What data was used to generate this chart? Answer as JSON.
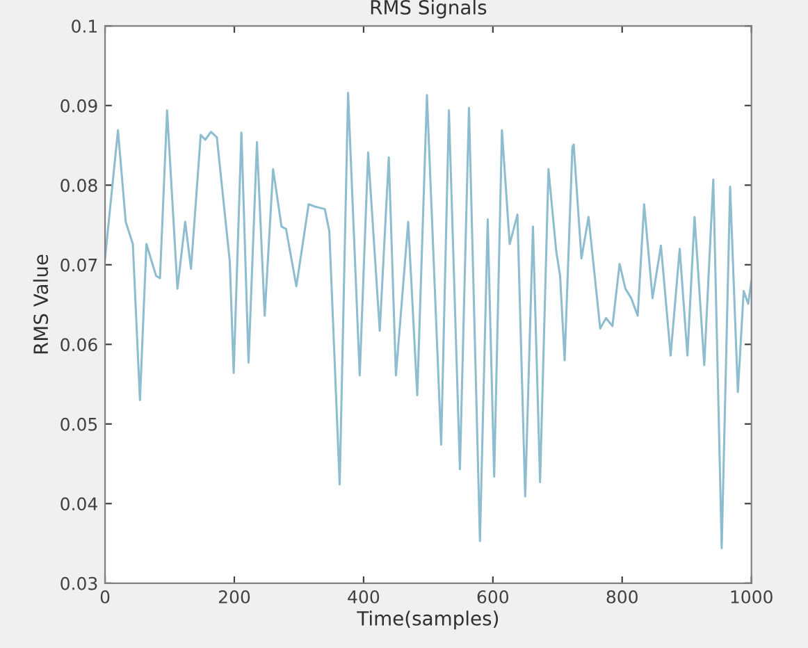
{
  "chart_data": {
    "type": "line",
    "title": "RMS Signals",
    "xlabel": "Time(samples)",
    "ylabel": "RMS Value",
    "xlim": [
      0,
      1000
    ],
    "xticks": [
      0,
      200,
      400,
      600,
      800,
      1000
    ],
    "ylim": [
      0.03,
      0.1
    ],
    "yticks": [
      0.03,
      0.04,
      0.05,
      0.06,
      0.07,
      0.08,
      0.09,
      0.1
    ],
    "grid": false,
    "legend": false,
    "series": [
      {
        "color": "#8fbdd0",
        "x": [
          0,
          20,
          32,
          43,
          54,
          64,
          79,
          85,
          96,
          112,
          124,
          133,
          148,
          155,
          164,
          173,
          193,
          199,
          211,
          222,
          235,
          247,
          260,
          273,
          280,
          296,
          315,
          325,
          340,
          347,
          363,
          376,
          394,
          407,
          425,
          439,
          450,
          469,
          483,
          498,
          520,
          532,
          549,
          563,
          580,
          592,
          602,
          614,
          626,
          638,
          650,
          662,
          673,
          686,
          698,
          704,
          711,
          723,
          725,
          737,
          748,
          756,
          766,
          775,
          785,
          796,
          805,
          814,
          824,
          834,
          847,
          860,
          875,
          889,
          901,
          912,
          927,
          941,
          954,
          967,
          979,
          988,
          995,
          1000
        ],
        "values": [
          0.0708,
          0.0869,
          0.0754,
          0.0726,
          0.053,
          0.0726,
          0.0686,
          0.0683,
          0.0894,
          0.067,
          0.0754,
          0.0695,
          0.0863,
          0.0857,
          0.0867,
          0.086,
          0.0704,
          0.0564,
          0.0866,
          0.0577,
          0.0854,
          0.0636,
          0.082,
          0.0748,
          0.0745,
          0.0673,
          0.0776,
          0.0773,
          0.077,
          0.0742,
          0.0424,
          0.0916,
          0.0561,
          0.0841,
          0.0617,
          0.0835,
          0.0561,
          0.0754,
          0.0536,
          0.0913,
          0.0474,
          0.0894,
          0.0443,
          0.0897,
          0.0353,
          0.0757,
          0.0434,
          0.0869,
          0.0726,
          0.0763,
          0.0409,
          0.0748,
          0.0427,
          0.082,
          0.0717,
          0.0686,
          0.058,
          0.0848,
          0.0851,
          0.0708,
          0.076,
          0.0698,
          0.062,
          0.0633,
          0.0623,
          0.0701,
          0.067,
          0.0658,
          0.0636,
          0.0776,
          0.0658,
          0.0724,
          0.0586,
          0.072,
          0.0586,
          0.076,
          0.0574,
          0.0807,
          0.0344,
          0.0798,
          0.054,
          0.0667,
          0.0651,
          0.068
        ]
      }
    ]
  }
}
